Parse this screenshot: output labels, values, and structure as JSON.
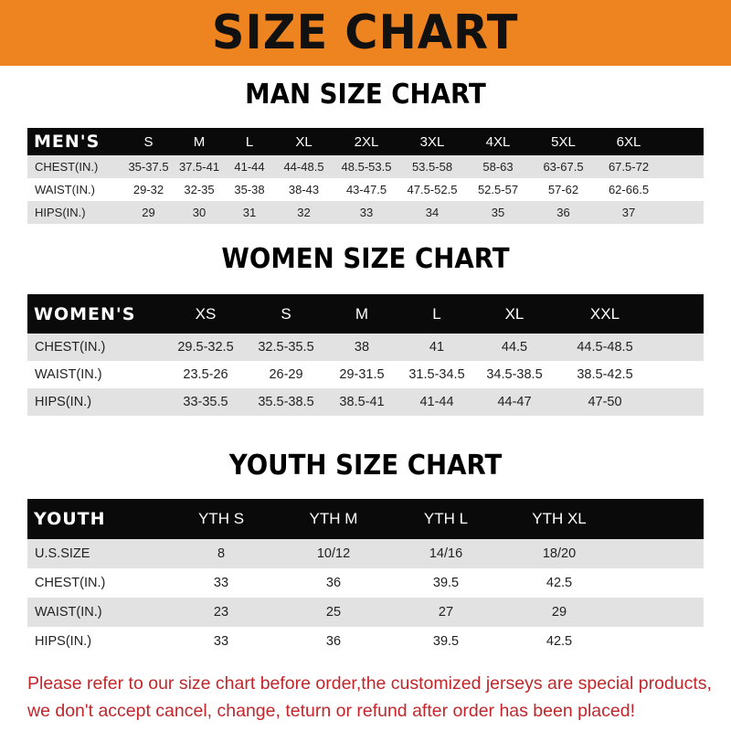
{
  "banner_title": "SIZE CHART",
  "men": {
    "title": "MAN SIZE CHART",
    "header": [
      "MEN'S",
      "S",
      "M",
      "L",
      "XL",
      "2XL",
      "3XL",
      "4XL",
      "5XL",
      "6XL"
    ],
    "rows": [
      [
        "CHEST(IN.)",
        "35-37.5",
        "37.5-41",
        "41-44",
        "44-48.5",
        "48.5-53.5",
        "53.5-58",
        "58-63",
        "63-67.5",
        "67.5-72"
      ],
      [
        "WAIST(IN.)",
        "29-32",
        "32-35",
        "35-38",
        "38-43",
        "43-47.5",
        "47.5-52.5",
        "52.5-57",
        "57-62",
        "62-66.5"
      ],
      [
        "HIPS(IN.)",
        "29",
        "30",
        "31",
        "32",
        "33",
        "34",
        "35",
        "36",
        "37"
      ]
    ]
  },
  "women": {
    "title": "WOMEN SIZE CHART",
    "header": [
      "WOMEN'S",
      "XS",
      "S",
      "M",
      "L",
      "XL",
      "XXL"
    ],
    "rows": [
      [
        "CHEST(IN.)",
        "29.5-32.5",
        "32.5-35.5",
        "38",
        "41",
        "44.5",
        "44.5-48.5"
      ],
      [
        "WAIST(IN.)",
        "23.5-26",
        "26-29",
        "29-31.5",
        "31.5-34.5",
        "34.5-38.5",
        "38.5-42.5"
      ],
      [
        "HIPS(IN.)",
        "33-35.5",
        "35.5-38.5",
        "38.5-41",
        "41-44",
        "44-47",
        "47-50"
      ]
    ]
  },
  "youth": {
    "title": "YOUTH SIZE CHART",
    "header": [
      "YOUTH",
      "YTH S",
      "YTH M",
      "YTH L",
      "YTH XL"
    ],
    "rows": [
      [
        "U.S.SIZE",
        "8",
        "10/12",
        "14/16",
        "18/20"
      ],
      [
        "CHEST(IN.)",
        "33",
        "36",
        "39.5",
        "42.5"
      ],
      [
        "WAIST(IN.)",
        "23",
        "25",
        "27",
        "29"
      ],
      [
        "HIPS(IN.)",
        "33",
        "36",
        "39.5",
        "42.5"
      ]
    ]
  },
  "notice": {
    "line1": "Please refer to our size chart before order,the customized jerseys are special products,",
    "line2": "we don't accept cancel, change, teturn or refund after order has been placed!"
  },
  "colors": {
    "banner": "#ee8420",
    "header_row": "#0a0a0a",
    "stripe": "#e2e2e2",
    "notice": "#c2262b"
  }
}
